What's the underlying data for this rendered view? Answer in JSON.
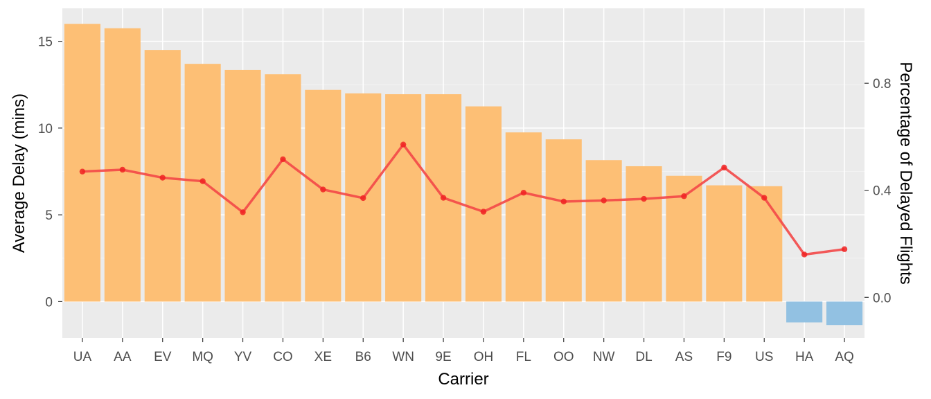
{
  "chart_data": {
    "type": "bar",
    "title": "",
    "xlabel": "Carrier",
    "ylabel": "Average Delay (mins)",
    "y2label": "Percentage of Delayed Flights",
    "ylim": [
      -2.1,
      16.9
    ],
    "y2lim": [
      -0.152,
      1.08
    ],
    "yticks": [
      0,
      5,
      10,
      15
    ],
    "y2ticks": [
      "0.0",
      "0.4",
      "0.8"
    ],
    "y2tick_values": [
      0.0,
      0.4,
      0.8
    ],
    "grid": true,
    "legend": "none",
    "categories": [
      "UA",
      "AA",
      "EV",
      "MQ",
      "YV",
      "CO",
      "XE",
      "B6",
      "WN",
      "9E",
      "OH",
      "FL",
      "OO",
      "NW",
      "DL",
      "AS",
      "F9",
      "US",
      "HA",
      "AQ"
    ],
    "series": [
      {
        "axis": "left",
        "kind": "bar",
        "values": [
          16.0,
          15.75,
          14.5,
          13.7,
          13.35,
          13.1,
          12.2,
          12.0,
          11.95,
          11.95,
          11.25,
          9.75,
          9.35,
          8.15,
          7.8,
          7.25,
          6.7,
          6.65,
          -1.2,
          -1.35
        ]
      },
      {
        "axis": "right",
        "kind": "line",
        "values": [
          0.47,
          0.477,
          0.447,
          0.434,
          0.318,
          0.516,
          0.403,
          0.371,
          0.571,
          0.372,
          0.32,
          0.391,
          0.358,
          0.362,
          0.368,
          0.378,
          0.485,
          0.372,
          0.16,
          0.18
        ]
      }
    ],
    "colors": {
      "panel": "#ebebeb",
      "grid_major": "#ffffff",
      "bar_positive": "#fdbf75",
      "bar_negative": "#92c1e2",
      "line": "#f34848",
      "point": "#f02222",
      "tick": "#333333"
    }
  }
}
